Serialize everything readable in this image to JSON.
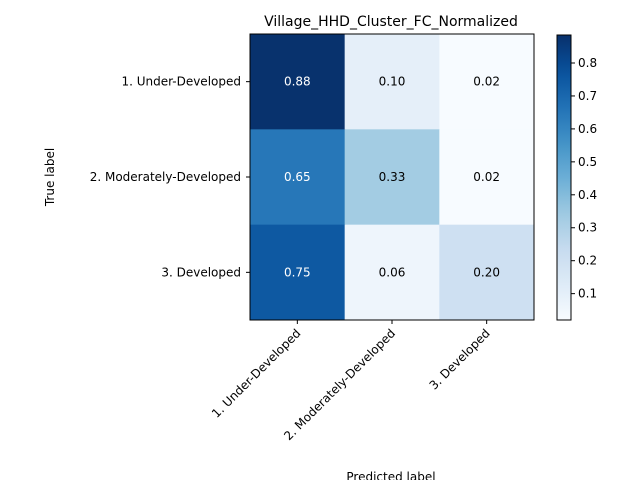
{
  "chart_data": {
    "type": "heatmap",
    "title": "Village_HHD_Cluster_FC_Normalized",
    "xlabel": "Predicted label",
    "ylabel": "True label",
    "x_categories": [
      "1. Under-Developed",
      "2. Moderately-Developed",
      "3. Developed"
    ],
    "y_categories": [
      "1. Under-Developed",
      "2. Moderately-Developed",
      "3. Developed"
    ],
    "values": [
      [
        0.88,
        0.1,
        0.02
      ],
      [
        0.65,
        0.33,
        0.02
      ],
      [
        0.75,
        0.06,
        0.2
      ]
    ],
    "value_labels": [
      [
        "0.88",
        "0.10",
        "0.02"
      ],
      [
        "0.65",
        "0.33",
        "0.02"
      ],
      [
        "0.75",
        "0.06",
        "0.20"
      ]
    ],
    "colormap": "Blues",
    "colorbar": {
      "range": [
        0.02,
        0.885
      ],
      "ticks": [
        0.1,
        0.2,
        0.3,
        0.4,
        0.5,
        0.6,
        0.7,
        0.8
      ],
      "tick_labels": [
        "0.1",
        "0.2",
        "0.3",
        "0.4",
        "0.5",
        "0.6",
        "0.7",
        "0.8"
      ]
    },
    "grid": false
  }
}
